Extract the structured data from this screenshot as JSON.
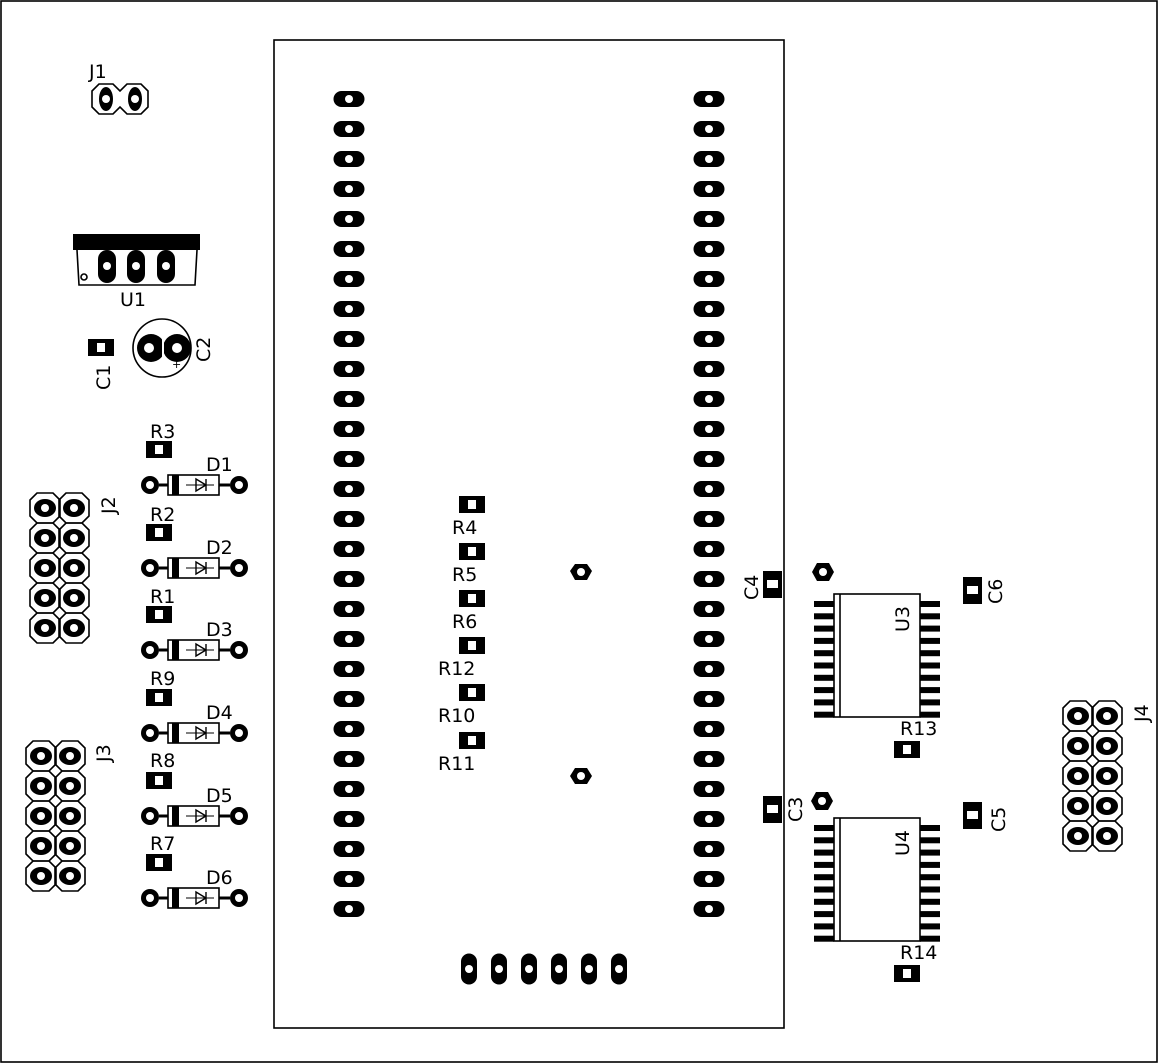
{
  "board": {
    "colors": {
      "background": "#ffffff",
      "copper": "#000000",
      "silkscreen": "#000000"
    }
  },
  "labels": {
    "J1": "J1",
    "J2": "J2",
    "J3": "J3",
    "J4": "J4",
    "U1": "U1",
    "U3": "U3",
    "U4": "U4",
    "C1": "C1",
    "C2": "C2",
    "C3": "C3",
    "C4": "C4",
    "C5": "C5",
    "C6": "C6",
    "R1": "R1",
    "R2": "R2",
    "R3": "R3",
    "R4": "R4",
    "R5": "R5",
    "R6": "R6",
    "R7": "R7",
    "R8": "R8",
    "R9": "R9",
    "R10": "R10",
    "R11": "R11",
    "R12": "R12",
    "R13": "R13",
    "R14": "R14",
    "D1": "D1",
    "D2": "D2",
    "D3": "D3",
    "D4": "D4",
    "D5": "D5",
    "D6": "D6"
  },
  "module_header": {
    "pins_per_row": 28
  },
  "bottom_header": {
    "pins": 6
  },
  "icons": {
    "diode": "diode-symbol-icon",
    "mounting_hole": "mounting-hole-icon"
  }
}
